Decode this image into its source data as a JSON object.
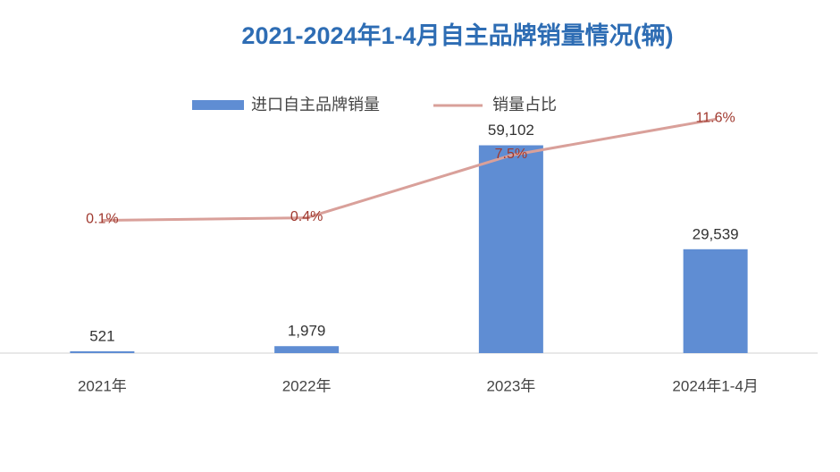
{
  "chart_data": {
    "type": "bar-line",
    "title": "2021-2024年1-4月自主品牌销量情况(辆)",
    "categories": [
      "2021年",
      "2022年",
      "2023年",
      "2024年1-4月"
    ],
    "series": [
      {
        "name": "进口自主品牌销量",
        "type": "bar",
        "color": "#5f8dd3",
        "values": [
          521,
          1979,
          59102,
          29539
        ],
        "value_labels": [
          "521",
          "1,979",
          "59,102",
          "29,539"
        ]
      },
      {
        "name": "销量占比",
        "type": "line",
        "axis": "y2",
        "color": "#d9a09a",
        "values": [
          0.1,
          0.4,
          7.5,
          11.6
        ],
        "value_labels": [
          "0.1%",
          "0.4%",
          "7.5%",
          "11.6%"
        ]
      }
    ],
    "ylim": [
      0,
      75000
    ],
    "y2lim": [
      -15,
      15
    ],
    "grid": false
  }
}
